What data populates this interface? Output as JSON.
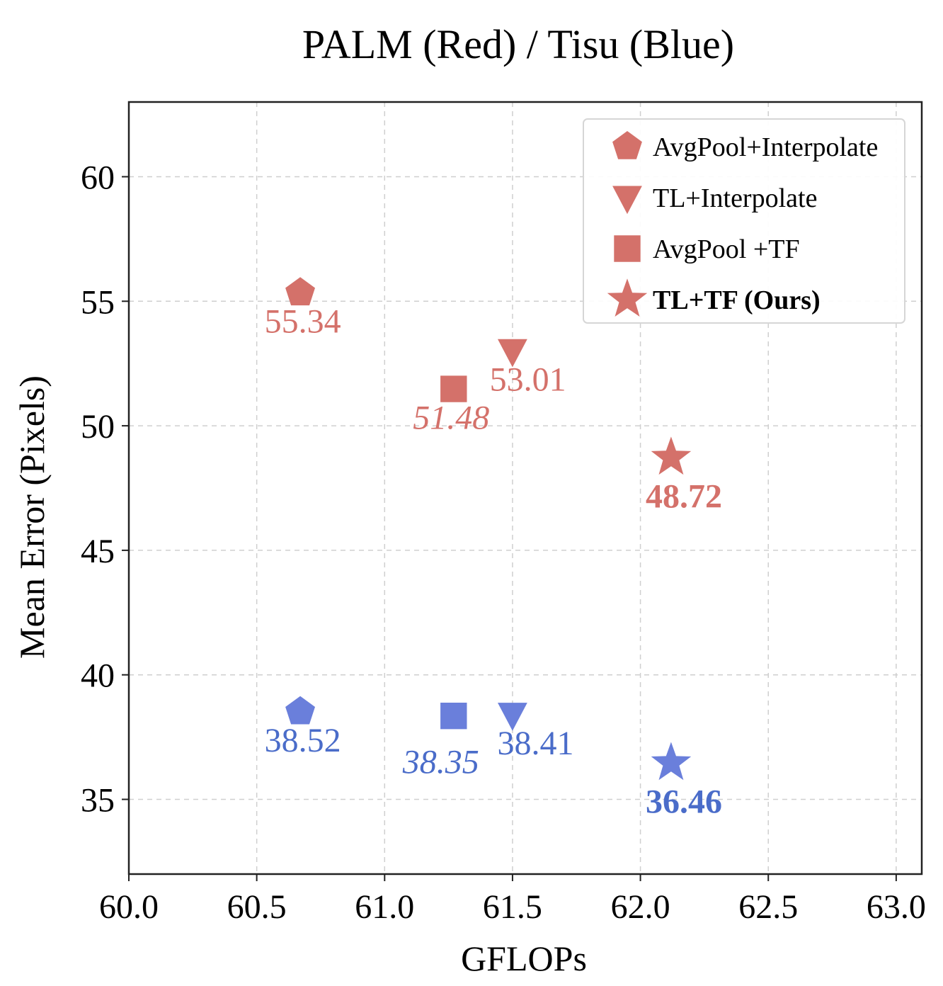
{
  "chart_data": {
    "type": "scatter",
    "title": "PALM (Red) / Tisu (Blue)",
    "xlabel": "GFLOPs",
    "ylabel": "Mean Error (Pixels)",
    "xlim": [
      60.0,
      63.1
    ],
    "ylim": [
      32.0,
      63.0
    ],
    "xticks": [
      "60.0",
      "60.5",
      "61.0",
      "61.5",
      "62.0",
      "62.5",
      "63.0"
    ],
    "xtick_values": [
      60.0,
      60.5,
      61.0,
      61.5,
      62.0,
      62.5,
      63.0
    ],
    "yticks": [
      "35",
      "40",
      "45",
      "50",
      "55",
      "60"
    ],
    "ytick_values": [
      35,
      40,
      45,
      50,
      55,
      60
    ],
    "grid": true,
    "legend_position": "top-right",
    "colors": {
      "palm": "#d4716a",
      "tisu": "#6a7fdb",
      "tisu_label": "#4a6cc9"
    },
    "legend": [
      {
        "marker": "pentagon",
        "label": "AvgPool+Interpolate",
        "bold": false
      },
      {
        "marker": "triangle-down",
        "label": "TL+Interpolate",
        "bold": false
      },
      {
        "marker": "square",
        "label": "AvgPool +TF",
        "bold": false
      },
      {
        "marker": "star",
        "label": "TL+TF (Ours)",
        "bold": true
      }
    ],
    "series": [
      {
        "name": "PALM",
        "color": "#d4716a",
        "points": [
          {
            "method": "AvgPool+Interpolate",
            "marker": "pentagon",
            "x": 60.67,
            "y": 55.34,
            "label": "55.34",
            "style": "normal",
            "label_dx": 0.01,
            "label_dy": -1.6
          },
          {
            "method": "TL+Interpolate",
            "marker": "triangle-down",
            "x": 61.5,
            "y": 53.01,
            "label": "53.01",
            "style": "normal",
            "label_dx": 0.06,
            "label_dy": -1.6
          },
          {
            "method": "AvgPool +TF",
            "marker": "square",
            "x": 61.27,
            "y": 51.48,
            "label": "51.48",
            "style": "italic",
            "label_dx": -0.01,
            "label_dy": -1.6
          },
          {
            "method": "TL+TF (Ours)",
            "marker": "star",
            "x": 62.12,
            "y": 48.72,
            "label": "48.72",
            "style": "bold",
            "label_dx": 0.05,
            "label_dy": -2.0
          }
        ]
      },
      {
        "name": "Tisu",
        "color": "#6a7fdb",
        "points": [
          {
            "method": "AvgPool+Interpolate",
            "marker": "pentagon",
            "x": 60.67,
            "y": 38.52,
            "label": "38.52",
            "style": "normal",
            "label_dx": 0.01,
            "label_dy": -1.6
          },
          {
            "method": "TL+Interpolate",
            "marker": "triangle-down",
            "x": 61.5,
            "y": 38.41,
            "label": "38.41",
            "style": "normal",
            "label_dx": 0.09,
            "label_dy": -1.6
          },
          {
            "method": "AvgPool +TF",
            "marker": "square",
            "x": 61.27,
            "y": 38.35,
            "label": "38.35",
            "style": "italic",
            "label_dx": -0.05,
            "label_dy": -2.3
          },
          {
            "method": "TL+TF (Ours)",
            "marker": "star",
            "x": 62.12,
            "y": 36.46,
            "label": "36.46",
            "style": "bold",
            "label_dx": 0.05,
            "label_dy": -2.0
          }
        ]
      }
    ]
  }
}
